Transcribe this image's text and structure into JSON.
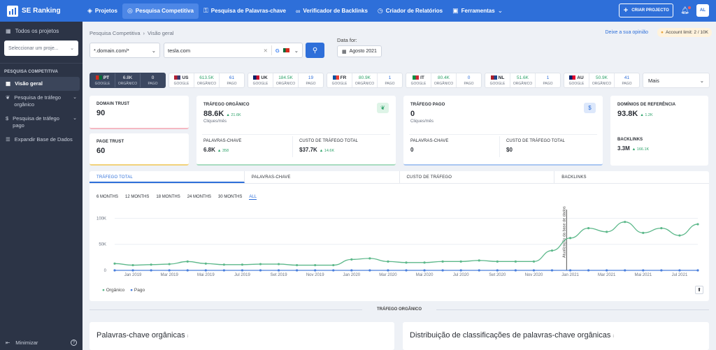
{
  "app": {
    "name": "SE Ranking"
  },
  "nav": [
    {
      "label": "Projetos",
      "icon": "layers-icon"
    },
    {
      "label": "Pesquisa Competitiva",
      "icon": "target-icon",
      "active": true
    },
    {
      "label": "Pesquisa de Palavras-chave",
      "icon": "key-icon"
    },
    {
      "label": "Verificador de Backlinks",
      "icon": "link-icon"
    },
    {
      "label": "Criador de Relatórios",
      "icon": "clock-icon"
    },
    {
      "label": "Ferramentas",
      "icon": "briefcase-icon"
    }
  ],
  "topright": {
    "create": "CRIAR PROJECTO",
    "avatar": "AL"
  },
  "sidebar": {
    "all_projects": "Todos os projetos",
    "select_placeholder": "Seleccionar um proje...",
    "section": "PESQUISA COMPETITIVA",
    "items": [
      {
        "label": "Visão geral"
      },
      {
        "label": "Pesquisa de tráfego orgânico"
      },
      {
        "label": "Pesquisa de tráfego pago"
      },
      {
        "label": "Expandir Base de Dados"
      }
    ],
    "minimize": "Minimizar"
  },
  "breadcrumb": [
    "Pesquisa Competitiva",
    "›",
    "Visão geral"
  ],
  "feedback": "Deixe a sua opinião",
  "limit": "Account limit: 2 / 10K",
  "search": {
    "mode": "*.domain.com/*",
    "domain": "tesla.com",
    "date_label": "Data for:",
    "date": "Agosto 2021"
  },
  "countries": [
    {
      "code": "PT",
      "organic": "6.8K",
      "paid": "0",
      "active": true,
      "flag": [
        "#d52b1e",
        "#046a38"
      ]
    },
    {
      "code": "US",
      "organic": "613.5K",
      "paid": "61",
      "flag": [
        "#b22234",
        "#3c3b6e"
      ]
    },
    {
      "code": "UK",
      "organic": "184.5K",
      "paid": "19",
      "flag": [
        "#012169",
        "#c8102e"
      ]
    },
    {
      "code": "FR",
      "organic": "80.9K",
      "paid": "1",
      "flag": [
        "#0055a4",
        "#ef4135"
      ]
    },
    {
      "code": "IT",
      "organic": "80.4K",
      "paid": "0",
      "flag": [
        "#009246",
        "#ce2b37"
      ]
    },
    {
      "code": "NL",
      "organic": "51.6K",
      "paid": "1",
      "flag": [
        "#ae1c28",
        "#21468b"
      ]
    },
    {
      "code": "AU",
      "organic": "50.9K",
      "paid": "41",
      "flag": [
        "#012169",
        "#e4002b"
      ]
    }
  ],
  "country_labels": {
    "engine": "GOOGLE",
    "organic": "ORGÂNICO",
    "paid": "PAGO"
  },
  "more": "Mais",
  "metrics": {
    "domain_trust": {
      "label": "DOMAIN TRUST",
      "value": "90"
    },
    "page_trust": {
      "label": "PAGE TRUST",
      "value": "60"
    },
    "organic": {
      "label": "TRÁFEGO ORGÂNICO",
      "value": "88.6K",
      "delta": "▲ 21.6K",
      "sub": "Cliques/mês",
      "kw_label": "PALAVRAS-CHAVE",
      "kw": "6.8K",
      "kw_delta": "▲ 358",
      "cost_label": "CUSTO DE TRÁFEGO TOTAL",
      "cost": "$37.7K",
      "cost_delta": "▲ 14.6K"
    },
    "paid": {
      "label": "TRÁFEGO PAGO",
      "value": "0",
      "sub": "Cliques/mês",
      "kw_label": "PALAVRAS-CHAVE",
      "kw": "0",
      "cost_label": "CUSTO DE TRÁFEGO TOTAL",
      "cost": "$0"
    },
    "ref": {
      "label": "DOMÍNIOS DE REFERÊNCIA",
      "value": "93.8K",
      "delta": "▲ 1.2K",
      "bl_label": "BACKLINKS",
      "bl": "3.3M",
      "bl_delta": "▲ 166.1K"
    }
  },
  "tabs": [
    "TRÁFEGO TOTAL",
    "PALAVRAS-CHAVE",
    "CUSTO DE TRÁFEGO",
    "BACKLINKS"
  ],
  "periods": [
    "6 MONTHS",
    "12 MONTHS",
    "18 MONTHS",
    "24 MONTHS",
    "30 MONTHS",
    "ALL"
  ],
  "chart_data": {
    "type": "line",
    "x": [
      "Dec 2018",
      "Jan 2019",
      "Feb 2019",
      "Mar 2019",
      "Apr 2019",
      "May 2019",
      "Jun 2019",
      "Jul 2019",
      "Aug 2019",
      "Sep 2019",
      "Oct 2019",
      "Nov 2019",
      "Dec 2019",
      "Jan 2020",
      "Feb 2020",
      "Mar 2020",
      "Apr 2020",
      "May 2020",
      "Jun 2020",
      "Jul 2020",
      "Aug 2020",
      "Sep 2020",
      "Oct 2020",
      "Nov 2020",
      "Dec 2020",
      "Jan 2021",
      "Feb 2021",
      "Mar 2021",
      "Apr 2021",
      "May 2021",
      "Jun 2021",
      "Jul 2021",
      "Aug 2021"
    ],
    "xticks": [
      "Jan 2019",
      "Mar 2019",
      "Mai 2019",
      "Jul 2019",
      "Set 2019",
      "Nov 2019",
      "Jan 2020",
      "Mar 2020",
      "Mai 2020",
      "Jul 2020",
      "Set 2020",
      "Nov 2020",
      "Jan 2021",
      "Mar 2021",
      "Mai 2021",
      "Jul 2021"
    ],
    "yticks": [
      "100K",
      "50K",
      "0"
    ],
    "ylim": [
      0,
      110000
    ],
    "series": [
      {
        "name": "Orgânico",
        "color": "#5cb88a",
        "values": [
          13000,
          10000,
          11000,
          12000,
          17000,
          13000,
          11000,
          11000,
          12000,
          12000,
          10000,
          10000,
          10000,
          21000,
          23000,
          17000,
          15000,
          15000,
          17000,
          17000,
          19000,
          17000,
          17000,
          17000,
          38000,
          62000,
          81000,
          74000,
          93000,
          72000,
          81000,
          67000,
          88600
        ]
      },
      {
        "name": "Pago",
        "color": "#4a7fdc",
        "values": [
          0,
          0,
          0,
          0,
          0,
          0,
          0,
          0,
          0,
          0,
          0,
          0,
          0,
          0,
          0,
          0,
          0,
          0,
          0,
          0,
          0,
          0,
          0,
          0,
          0,
          0,
          0,
          0,
          0,
          0,
          0,
          0,
          0
        ]
      }
    ],
    "annotation": {
      "x": "Jan 2021",
      "label": "Atualização da base de dados"
    }
  },
  "section_title": "TRÁFEGO ORGÂNICO",
  "bottom": {
    "left": "Palavras-chave orgânicas",
    "right": "Distribuição de classificações de palavras-chave orgânicas"
  }
}
